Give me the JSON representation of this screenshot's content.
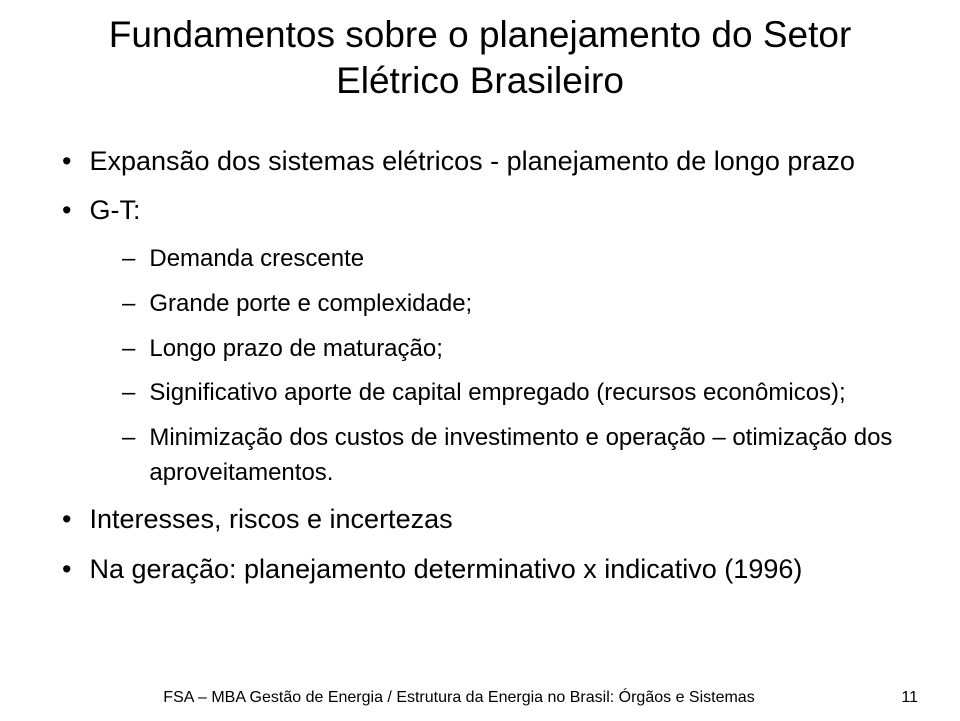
{
  "title_line1": "Fundamentos sobre o planejamento do Setor",
  "title_line2": "Elétrico Brasileiro",
  "bullets": {
    "b1": "Expansão dos sistemas elétricos - planejamento de longo prazo",
    "b2": "G-T:",
    "sub": {
      "s1": "Demanda crescente",
      "s2": "Grande porte e complexidade;",
      "s3": "Longo prazo de maturação;",
      "s4": "Significativo aporte de capital empregado (recursos econômicos);",
      "s5": "Minimização dos custos de investimento e operação – otimização dos aproveitamentos."
    },
    "b3": "Interesses, riscos e incertezas",
    "b4": "Na geração: planejamento determinativo x indicativo (1996)"
  },
  "footer": {
    "text": "FSA – MBA Gestão de Energia / Estrutura da Energia no Brasil: Órgãos e Sistemas",
    "page": "11"
  },
  "glyphs": {
    "bullet": "•",
    "dash": "–"
  }
}
